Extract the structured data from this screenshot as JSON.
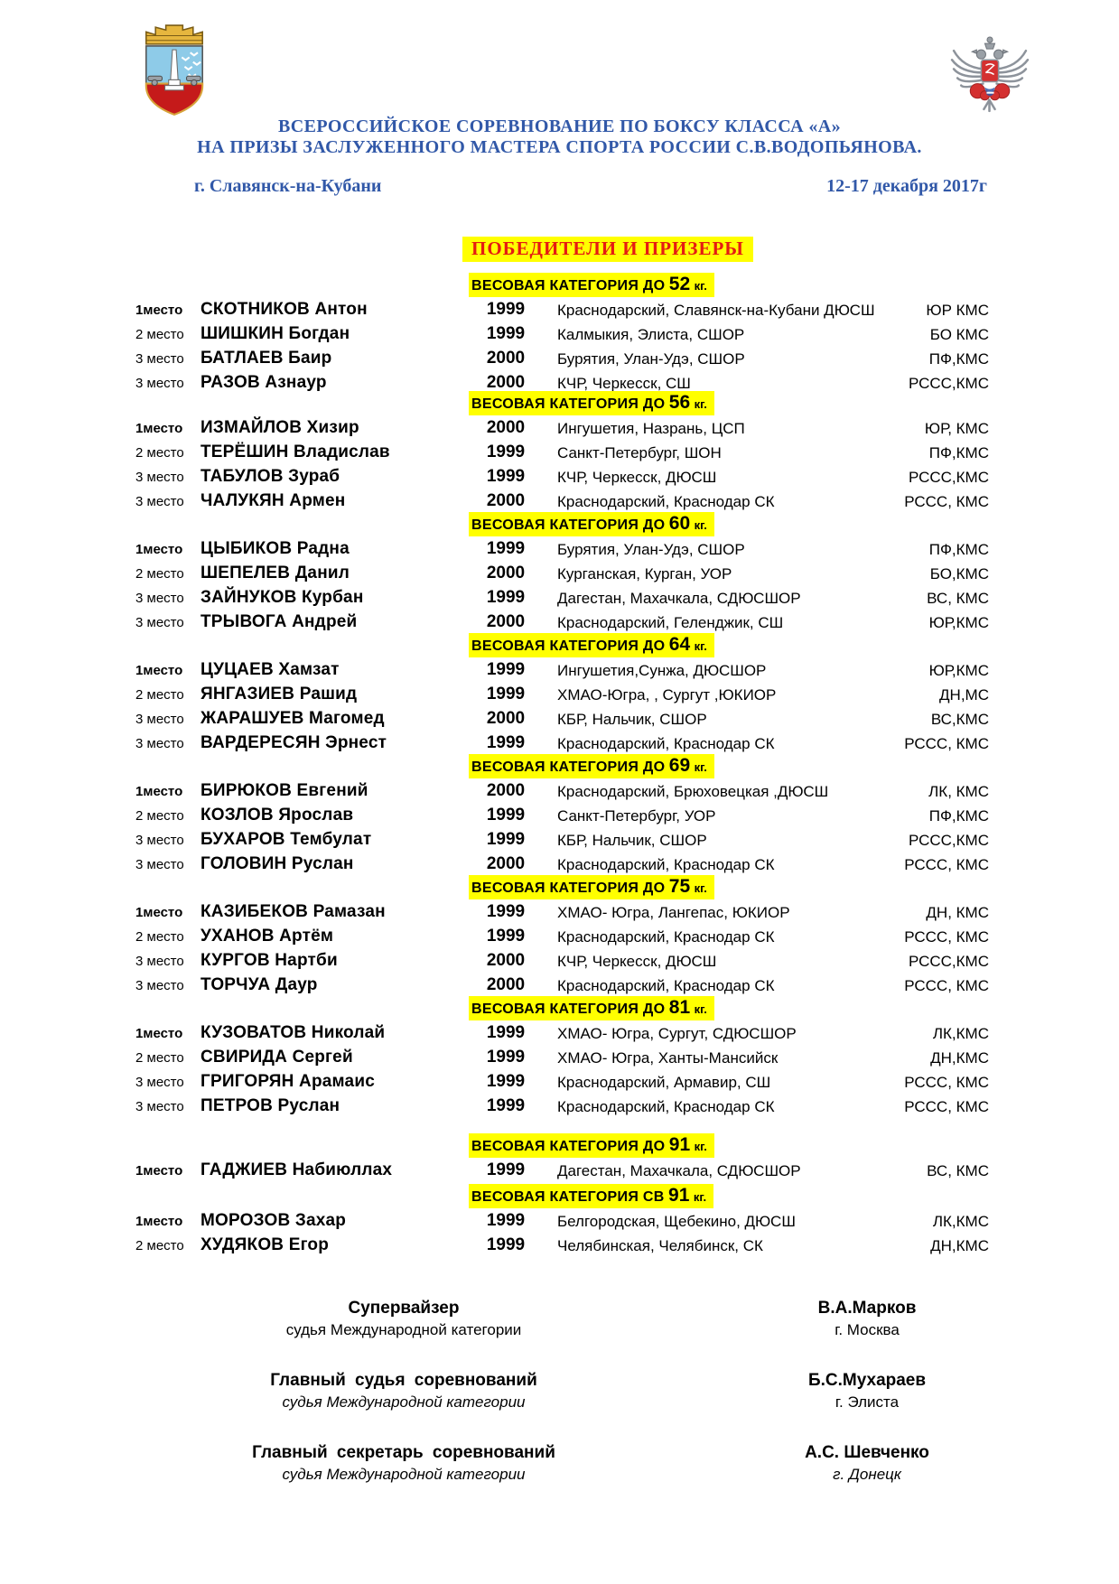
{
  "header": {
    "title_line1": "ВСЕРОССИЙСКОЕ СОРЕВНОВАНИЕ ПО БОКСУ КЛАССА «А»",
    "title_line2": "НА ПРИЗЫ ЗАСЛУЖЕННОГО МАСТЕРА СПОРТА РОССИИ С.В.ВОДОПЬЯНОВА.",
    "location": "г. Славянск-на-Кубани",
    "dates": "12-17 декабря 2017г",
    "left_emblem": "slavyansk-na-kubani-coat-of-arms",
    "right_emblem": "russian-boxing-federation-eagle"
  },
  "colors": {
    "heading_blue": "#3158a8",
    "title_red": "#e51b12",
    "highlight_yellow": "#ffff00"
  },
  "results": {
    "title": "ПОБЕДИТЕЛИ И ПРИЗЕРЫ",
    "categories": [
      {
        "prefix": "ВЕСОВАЯ КАТЕГОРИЯ ДО",
        "weight": "52",
        "unit": "кг.",
        "rows": [
          {
            "place": "1место",
            "name": "СКОТНИКОВ Антон",
            "year": "1999",
            "region": "Краснодарский, Славянск-на-Кубани ДЮСШ",
            "rank": "ЮР КМС"
          },
          {
            "place": "2 место",
            "name": "ШИШКИН Богдан",
            "year": "1999",
            "region": "Калмыкия, Элиста, СШОР",
            "rank": "БО  КМС"
          },
          {
            "place": "3 место",
            "name": "БАТЛАЕВ Баир",
            "year": "2000",
            "region": "Бурятия, Улан-Удэ, СШОР",
            "rank": "ПФ,КМС"
          },
          {
            "place": "3 место",
            "name": "РАЗОВ Азнаур",
            "year": "2000",
            "region": "КЧР, Черкесск, СШ",
            "rank": "РССС,КМС"
          }
        ]
      },
      {
        "prefix": "ВЕСОВАЯ КАТЕГОРИЯ ДО",
        "weight": "56",
        "unit": "кг.",
        "rows": [
          {
            "place": "1место",
            "name": "ИЗМАЙЛОВ Хизир",
            "year": "2000",
            "region": "Ингушетия, Назрань, ЦСП",
            "rank": "ЮР, КМС"
          },
          {
            "place": "2 место",
            "name": "ТЕРЁШИН Владислав",
            "year": "1999",
            "region": "Санкт-Петербург, ШОН",
            "rank": "ПФ,КМС"
          },
          {
            "place": "3 место",
            "name": "ТАБУЛОВ Зураб",
            "year": "1999",
            "region": "КЧР, Черкесск, ДЮСШ",
            "rank": "РССС,КМС"
          },
          {
            "place": "3 место",
            "name": "ЧАЛУКЯН Армен",
            "year": "2000",
            "region": "Краснодарский, Краснодар СК",
            "rank": "РССС, КМС"
          }
        ]
      },
      {
        "prefix": "ВЕСОВАЯ КАТЕГОРИЯ ДО",
        "weight": "60",
        "unit": "кг.",
        "rows": [
          {
            "place": "1место",
            "name": "ЦЫБИКОВ Радна",
            "year": "1999",
            "region": "Бурятия, Улан-Удэ, СШОР",
            "rank": "ПФ,КМС"
          },
          {
            "place": "2 место",
            "name": "ШЕПЕЛЕВ Данил",
            "year": "2000",
            "region": "Курганская, Курган, УОР",
            "rank": "БО,КМС"
          },
          {
            "place": "3 место",
            "name": "ЗАЙНУКОВ Курбан",
            "year": "1999",
            "region": "Дагестан, Махачкала, СДЮСШОР",
            "rank": "ВС, КМС"
          },
          {
            "place": "3 место",
            "name": "ТРЫВОГА Андрей",
            "year": "2000",
            "region": "Краснодарский, Геленджик, СШ",
            "rank": "ЮР,КМС"
          }
        ]
      },
      {
        "prefix": "ВЕСОВАЯ КАТЕГОРИЯ ДО",
        "weight": "64",
        "unit": "кг.",
        "rows": [
          {
            "place": "1место",
            "name": "ЦУЦАЕВ Хамзат",
            "year": "1999",
            "region": "Ингушетия,Сунжа, ДЮСШОР",
            "rank": "ЮР,КМС"
          },
          {
            "place": "2 место",
            "name": "ЯНГАЗИЕВ Рашид",
            "year": "1999",
            "region": "ХМАО-Югра, , Сургут ,ЮКИОР",
            "rank": "ДН,МС"
          },
          {
            "place": "3 место",
            "name": "ЖАРАШУЕВ Магомед",
            "year": "2000",
            "region": "КБР, Нальчик, СШОР",
            "rank": "ВС,КМС"
          },
          {
            "place": "3 место",
            "name": "ВАРДЕРЕСЯН Эрнест",
            "year": "1999",
            "region": "Краснодарский, Краснодар СК",
            "rank": "РССС, КМС"
          }
        ]
      },
      {
        "prefix": "ВЕСОВАЯ КАТЕГОРИЯ ДО",
        "weight": "69",
        "unit": "кг.",
        "rows": [
          {
            "place": "1место",
            "name": "БИРЮКОВ Евгений",
            "year": "2000",
            "region": "Краснодарский, Брюховецкая ,ДЮСШ",
            "rank": "ЛК, КМС"
          },
          {
            "place": "2 место",
            "name": "КОЗЛОВ Ярослав",
            "year": "1999",
            "region": "Санкт-Петербург, УОР",
            "rank": "ПФ,КМС"
          },
          {
            "place": "3 место",
            "name": "БУХАРОВ Тембулат",
            "year": "1999",
            "region": "КБР, Нальчик, СШОР",
            "rank": "РССС,КМС"
          },
          {
            "place": "3 место",
            "name": "ГОЛОВИН Руслан",
            "year": "2000",
            "region": "Краснодарский, Краснодар СК",
            "rank": "РССС, КМС"
          }
        ]
      },
      {
        "prefix": "ВЕСОВАЯ КАТЕГОРИЯ ДО",
        "weight": "75",
        "unit": "кг.",
        "rows": [
          {
            "place": "1место",
            "name": "КАЗИБЕКОВ Рамазан",
            "year": "1999",
            "region": "ХМАО- Югра,  Лангепас, ЮКИОР",
            "rank": "ДН, КМС"
          },
          {
            "place": "2 место",
            "name": "УХАНОВ Артём",
            "year": "1999",
            "region": "Краснодарский, Краснодар СК",
            "rank": "РССС, КМС"
          },
          {
            "place": "3 место",
            "name": "КУРГОВ Нартби",
            "year": "2000",
            "region": "КЧР, Черкесск, ДЮСШ",
            "rank": "РССС,КМС"
          },
          {
            "place": "3 место",
            "name": "ТОРЧУА Даур",
            "year": "2000",
            "region": "Краснодарский, Краснодар СК",
            "rank": "РССС, КМС"
          }
        ]
      },
      {
        "prefix": "ВЕСОВАЯ КАТЕГОРИЯ ДО",
        "weight": "81",
        "unit": "кг.",
        "rows": [
          {
            "place": "1место",
            "name": "КУЗОВАТОВ Николай",
            "year": "1999",
            "region": "ХМАО- Югра, Сургут, СДЮСШОР",
            "rank": "ЛК,КМС"
          },
          {
            "place": "2 место",
            "name": "СВИРИДА Сергей",
            "year": "1999",
            "region": "ХМАО- Югра, Ханты-Мансийск",
            "rank": "ДН,КМС"
          },
          {
            "place": "3 место",
            "name": "ГРИГОРЯН Арамаис",
            "year": "1999",
            "region": "Краснодарский,  Армавир, СШ",
            "rank": "РССС, КМС"
          },
          {
            "place": "3 место",
            "name": "ПЕТРОВ Руслан",
            "year": "1999",
            "region": "Краснодарский, Краснодар СК",
            "rank": "РССС, КМС"
          }
        ]
      },
      {
        "prefix": "ВЕСОВАЯ КАТЕГОРИЯ ДО",
        "weight": "91",
        "unit": "кг.",
        "rows": [
          {
            "place": "1место",
            "name": "ГАДЖИЕВ Набиюллах",
            "year": "1999",
            "region": "Дагестан, Махачкала, СДЮСШОР",
            "rank": "ВС, КМС"
          }
        ]
      },
      {
        "prefix": "ВЕСОВАЯ КАТЕГОРИЯ СВ",
        "weight": "91",
        "unit": "кг.",
        "rows": [
          {
            "place": "1место",
            "name": "МОРОЗОВ Захар",
            "year": "1999",
            "region": "Белгородская, Щебекино, ДЮСШ",
            "rank": "ЛК,КМС"
          },
          {
            "place": "2 место",
            "name": "ХУДЯКОВ Егор",
            "year": "1999",
            "region": "Челябинская, Челябинск, СК",
            "rank": "ДН,КМС"
          }
        ]
      }
    ]
  },
  "officials": [
    {
      "role": "Супервайзер",
      "sub": "судья Международной категории",
      "sub_italic": false,
      "name": "В.А.Марков",
      "city": "г. Москва",
      "city_italic": false
    },
    {
      "role": "Главный судья соревнований",
      "sub": "судья Международной категории",
      "sub_italic": true,
      "name": "Б.С.Мухараев",
      "city": "г. Элиста",
      "city_italic": false
    },
    {
      "role": "Главный секретарь соревнований",
      "sub": "судья Международной категории",
      "sub_italic": true,
      "name": "А.С. Шевченко",
      "city": "г. Донецк",
      "city_italic": true
    }
  ]
}
